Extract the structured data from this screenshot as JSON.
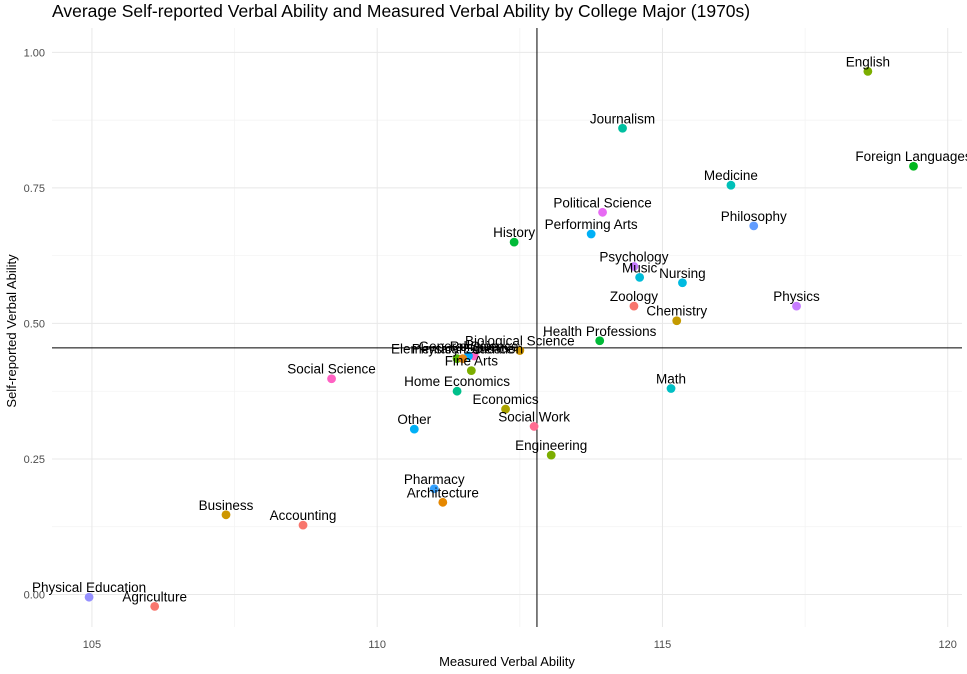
{
  "chart_data": {
    "type": "scatter",
    "title": "Average Self-reported Verbal Ability and Measured Verbal Ability by College Major (1970s)",
    "xlabel": "Measured Verbal Ability",
    "ylabel": "Self-reported Verbal Ability",
    "xlim": [
      104.3,
      120.25
    ],
    "ylim": [
      -0.06,
      1.045
    ],
    "xticks": [
      105,
      110,
      115,
      120
    ],
    "yticks": [
      0.0,
      0.25,
      0.5,
      0.75,
      1.0
    ],
    "ytick_labels": [
      "0.00",
      "0.25",
      "0.50",
      "0.75",
      "1.00"
    ],
    "grid": true,
    "reference_lines": {
      "vertical_x": 112.8,
      "horizontal_y": 0.455
    },
    "points": [
      {
        "label": "English",
        "x": 118.6,
        "y": 0.965,
        "color": "#7CAE00"
      },
      {
        "label": "Foreign Languages",
        "x": 119.4,
        "y": 0.79,
        "color": "#00B81F"
      },
      {
        "label": "Journalism",
        "x": 114.3,
        "y": 0.86,
        "color": "#00BFA0"
      },
      {
        "label": "Medicine",
        "x": 116.2,
        "y": 0.755,
        "color": "#00C0B8"
      },
      {
        "label": "Political Science",
        "x": 113.95,
        "y": 0.705,
        "color": "#E76BF3"
      },
      {
        "label": "Philosophy",
        "x": 116.6,
        "y": 0.68,
        "color": "#619CFF"
      },
      {
        "label": "Performing Arts",
        "x": 113.75,
        "y": 0.665,
        "color": "#00B0F6"
      },
      {
        "label": "History",
        "x": 112.4,
        "y": 0.65,
        "color": "#00BA38"
      },
      {
        "label": "Psychology",
        "x": 114.5,
        "y": 0.605,
        "color": "#C77CFF"
      },
      {
        "label": "Music",
        "x": 114.6,
        "y": 0.585,
        "color": "#00BCD8"
      },
      {
        "label": "Nursing",
        "x": 115.35,
        "y": 0.575,
        "color": "#00BAE0"
      },
      {
        "label": "Zoology",
        "x": 114.5,
        "y": 0.532,
        "color": "#F8766D"
      },
      {
        "label": "Physics",
        "x": 117.35,
        "y": 0.532,
        "color": "#C77CFF"
      },
      {
        "label": "Chemistry",
        "x": 115.25,
        "y": 0.505,
        "color": "#C49A00"
      },
      {
        "label": "Health Professions",
        "x": 113.9,
        "y": 0.468,
        "color": "#00BA38"
      },
      {
        "label": "Biological Science",
        "x": 112.5,
        "y": 0.45,
        "color": "#CD9600"
      },
      {
        "label": "Religion",
        "x": 111.7,
        "y": 0.44,
        "color": "#FF61C3"
      },
      {
        "label": "Elementary Education",
        "x": 111.4,
        "y": 0.435,
        "color": "#53B400"
      },
      {
        "label": "General Science",
        "x": 111.6,
        "y": 0.44,
        "color": "#00A9FF"
      },
      {
        "label": "Physical Science",
        "x": 111.5,
        "y": 0.435,
        "color": "#E68613"
      },
      {
        "label": "Fine Arts",
        "x": 111.65,
        "y": 0.413,
        "color": "#7CAE00"
      },
      {
        "label": "Social Science",
        "x": 109.2,
        "y": 0.398,
        "color": "#FF61C3"
      },
      {
        "label": "Home Economics",
        "x": 111.4,
        "y": 0.375,
        "color": "#00C08B"
      },
      {
        "label": "Math",
        "x": 115.15,
        "y": 0.38,
        "color": "#00BFC4"
      },
      {
        "label": "Economics",
        "x": 112.25,
        "y": 0.342,
        "color": "#ABA300"
      },
      {
        "label": "Social Work",
        "x": 112.75,
        "y": 0.31,
        "color": "#FF6C91"
      },
      {
        "label": "Other",
        "x": 110.65,
        "y": 0.305,
        "color": "#00B0F6"
      },
      {
        "label": "Engineering",
        "x": 113.05,
        "y": 0.257,
        "color": "#7CAE00"
      },
      {
        "label": "Pharmacy",
        "x": 111.0,
        "y": 0.195,
        "color": "#35A2FF"
      },
      {
        "label": "Architecture",
        "x": 111.15,
        "y": 0.17,
        "color": "#E58700"
      },
      {
        "label": "Business",
        "x": 107.35,
        "y": 0.147,
        "color": "#CD9600"
      },
      {
        "label": "Accounting",
        "x": 108.7,
        "y": 0.128,
        "color": "#F8766D"
      },
      {
        "label": "Physical Education",
        "x": 104.95,
        "y": -0.005,
        "color": "#9590FF"
      },
      {
        "label": "Agriculture",
        "x": 106.1,
        "y": -0.022,
        "color": "#F8766D"
      }
    ]
  }
}
